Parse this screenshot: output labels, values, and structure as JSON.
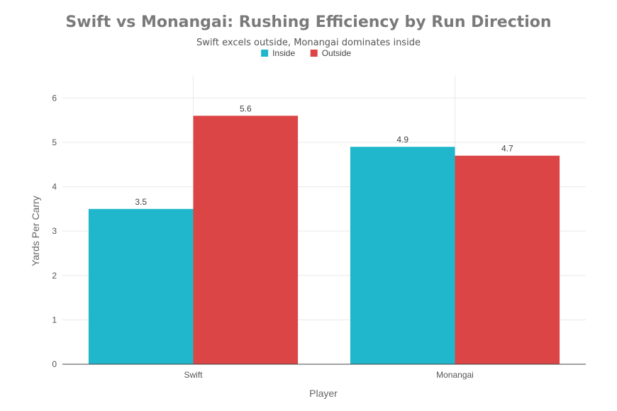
{
  "chart_data": {
    "type": "bar",
    "title": "Swift vs Monangai: Rushing Efficiency by Run Direction",
    "subtitle": "Swift excels outside, Monangai dominates inside",
    "xlabel": "Player",
    "ylabel": "Yards Per Carry",
    "categories": [
      "Swift",
      "Monangai"
    ],
    "series": [
      {
        "name": "Inside",
        "values": [
          3.5,
          4.9
        ],
        "color": "#20b7cc"
      },
      {
        "name": "Outside",
        "values": [
          5.6,
          4.7
        ],
        "color": "#dc4545"
      }
    ],
    "ylim": [
      0,
      6.5
    ],
    "yticks": [
      0,
      1,
      2,
      3,
      4,
      5,
      6
    ],
    "grid": true,
    "legend_position": "top-center",
    "data_labels": [
      "3.5",
      "4.9",
      "5.6",
      "4.7"
    ]
  }
}
